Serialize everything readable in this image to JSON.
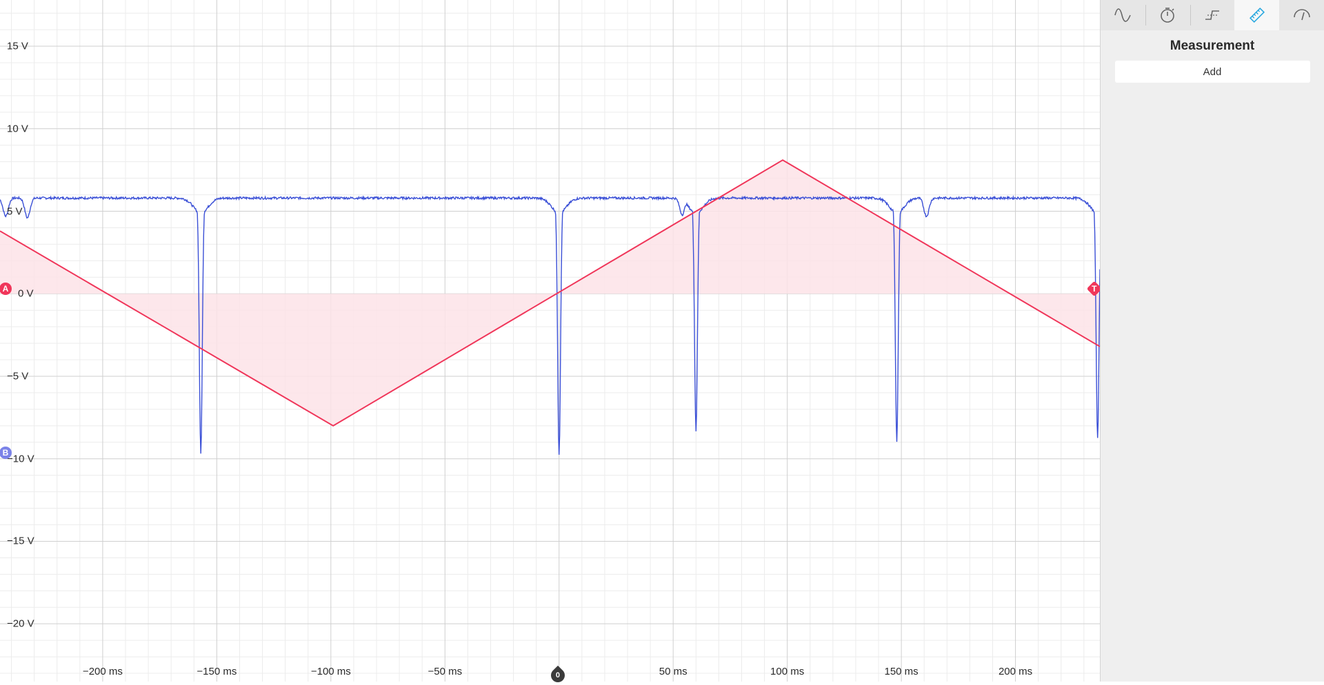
{
  "panel": {
    "tools": [
      {
        "name": "waveform-tool",
        "icon": "sine-wave-icon",
        "active": false
      },
      {
        "name": "timer-tool",
        "icon": "stopwatch-icon",
        "active": false
      },
      {
        "name": "trigger-tool",
        "icon": "trigger-edge-icon",
        "active": false
      },
      {
        "name": "measurement-tool",
        "icon": "ruler-icon",
        "active": true
      },
      {
        "name": "gauge-tool",
        "icon": "gauge-icon",
        "active": false
      }
    ],
    "title": "Measurement",
    "add_label": "Add"
  },
  "markers": {
    "channel_a": "A",
    "channel_b": "B",
    "trigger": "T",
    "zero": "0"
  },
  "colors": {
    "channel_a": "#f0365a",
    "channel_b": "#3a4fd6",
    "fill_a": "#fde3e8",
    "accent": "#29a8e0"
  },
  "chart_data": {
    "type": "line",
    "x_unit": "ms",
    "y_unit": "V",
    "xlim": [
      -245,
      237
    ],
    "ylim": [
      -23.5,
      17.8
    ],
    "grid": true,
    "x_ticks": [
      -200,
      -150,
      -100,
      -50,
      0,
      50,
      100,
      150,
      200
    ],
    "x_tick_labels": [
      "−200 ms",
      "−150 ms",
      "−100 ms",
      "−50 ms",
      "",
      "50 ms",
      "100 ms",
      "150 ms",
      "200 ms"
    ],
    "y_ticks": [
      15,
      10,
      5,
      0,
      -5,
      -10,
      -15,
      -20
    ],
    "y_tick_labels": [
      "15  V",
      "10  V",
      "5  V",
      "0  V",
      "−5  V",
      "−10  V",
      "−15  V",
      "−20  V"
    ],
    "series": [
      {
        "name": "A",
        "filled_to_zero": true,
        "points": [
          [
            -245,
            3.8
          ],
          [
            -99,
            -8.0
          ],
          [
            98,
            8.1
          ],
          [
            237,
            -3.2
          ]
        ]
      },
      {
        "name": "B",
        "baseline": 5.8,
        "dips": [
          {
            "x": -242.5,
            "y": 4.7
          },
          {
            "x": -233,
            "y": 4.6
          },
          {
            "x": -157,
            "y": -9.7
          },
          {
            "x": 0,
            "y": -9.7
          },
          {
            "x": 54,
            "y": 4.8
          },
          {
            "x": 60,
            "y": -8.3
          },
          {
            "x": 148,
            "y": -8.9
          },
          {
            "x": 161,
            "y": 4.7
          },
          {
            "x": 236,
            "y": -8.8
          }
        ]
      }
    ]
  }
}
